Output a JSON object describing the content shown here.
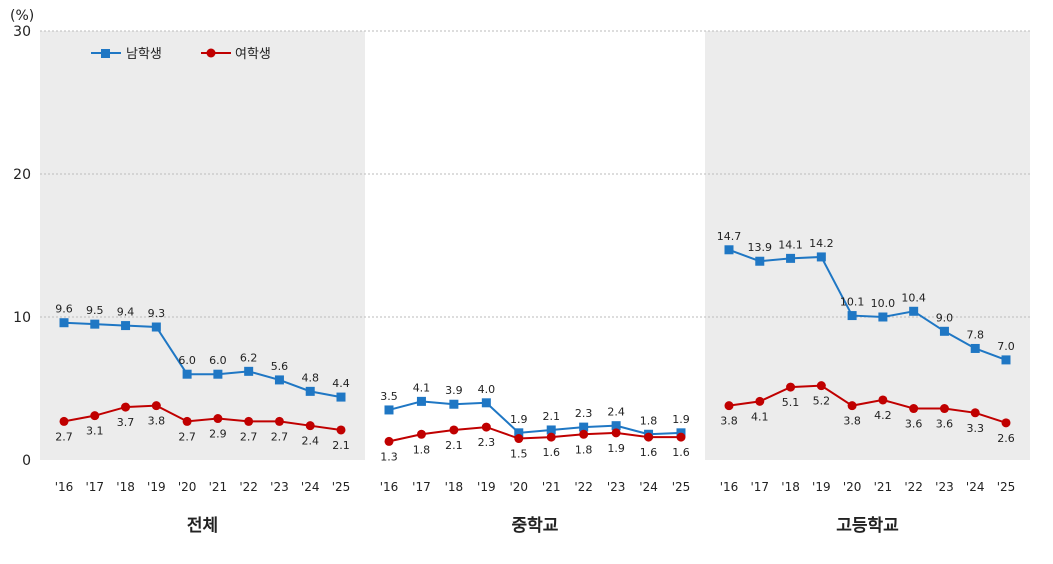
{
  "chart_data": {
    "type": "line",
    "unit_label": "(%)",
    "ylim": [
      0,
      30
    ],
    "yticks": [
      0,
      10,
      20,
      30
    ],
    "grid": true,
    "legend_position": "top-left",
    "colors": {
      "male": "#1f77c4",
      "female": "#c00000",
      "shade": "#ececec",
      "grid": "#bbbbbb"
    },
    "x": [
      "'16",
      "'17",
      "'18",
      "'19",
      "'20",
      "'21",
      "'22",
      "'23",
      "'24",
      "'25"
    ],
    "series_names": [
      "남학생",
      "여학생"
    ],
    "groups": [
      {
        "name": "전체",
        "shaded": true,
        "series": [
          {
            "name": "남학생",
            "values": [
              9.6,
              9.5,
              9.4,
              9.3,
              6.0,
              6.0,
              6.2,
              5.6,
              4.8,
              4.4
            ]
          },
          {
            "name": "여학생",
            "values": [
              2.7,
              3.1,
              3.7,
              3.8,
              2.7,
              2.9,
              2.7,
              2.7,
              2.4,
              2.1
            ]
          }
        ]
      },
      {
        "name": "중학교",
        "shaded": false,
        "series": [
          {
            "name": "남학생",
            "values": [
              3.5,
              4.1,
              3.9,
              4.0,
              1.9,
              2.1,
              2.3,
              2.4,
              1.8,
              1.9
            ]
          },
          {
            "name": "여학생",
            "values": [
              1.3,
              1.8,
              2.1,
              2.3,
              1.5,
              1.6,
              1.8,
              1.9,
              1.6,
              1.6
            ]
          }
        ]
      },
      {
        "name": "고등학교",
        "shaded": true,
        "series": [
          {
            "name": "남학생",
            "values": [
              14.7,
              13.9,
              14.1,
              14.2,
              10.1,
              10.0,
              10.4,
              9.0,
              7.8,
              7.0
            ]
          },
          {
            "name": "여학생",
            "values": [
              3.8,
              4.1,
              5.1,
              5.2,
              3.8,
              4.2,
              3.6,
              3.6,
              3.3,
              2.6
            ]
          }
        ]
      }
    ]
  }
}
